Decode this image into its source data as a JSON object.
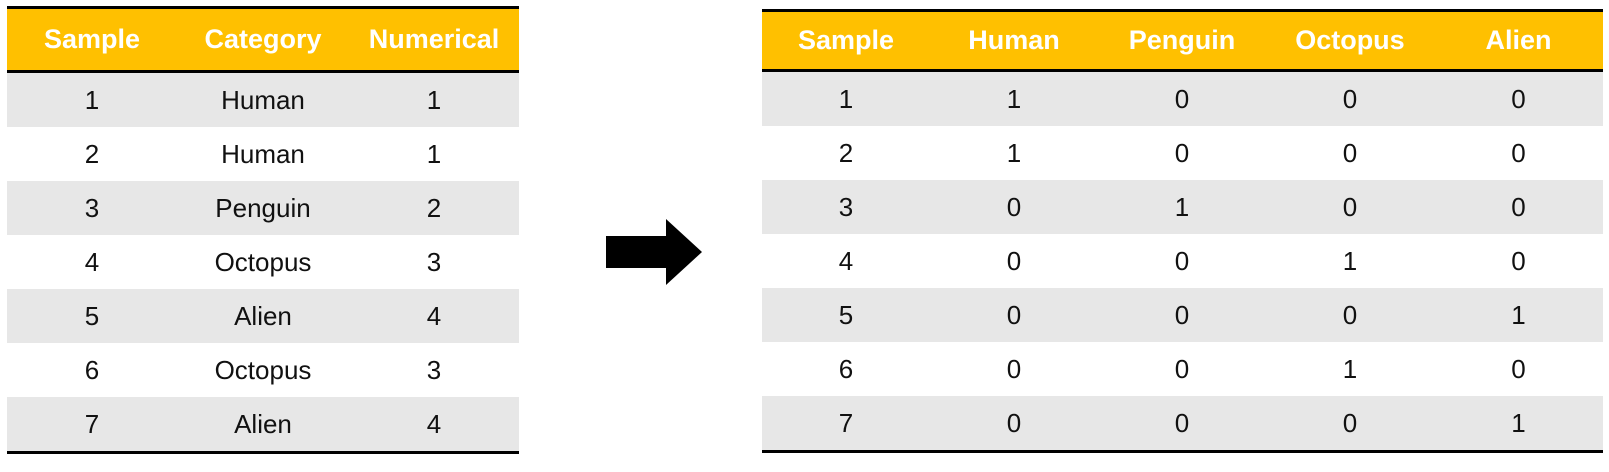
{
  "left_table": {
    "headers": [
      "Sample",
      "Category",
      "Numerical"
    ],
    "rows": [
      [
        "1",
        "Human",
        "1"
      ],
      [
        "2",
        "Human",
        "1"
      ],
      [
        "3",
        "Penguin",
        "2"
      ],
      [
        "4",
        "Octopus",
        "3"
      ],
      [
        "5",
        "Alien",
        "4"
      ],
      [
        "6",
        "Octopus",
        "3"
      ],
      [
        "7",
        "Alien",
        "4"
      ]
    ]
  },
  "right_table": {
    "headers": [
      "Sample",
      "Human",
      "Penguin",
      "Octopus",
      "Alien"
    ],
    "rows": [
      [
        "1",
        "1",
        "0",
        "0",
        "0"
      ],
      [
        "2",
        "1",
        "0",
        "0",
        "0"
      ],
      [
        "3",
        "0",
        "1",
        "0",
        "0"
      ],
      [
        "4",
        "0",
        "0",
        "1",
        "0"
      ],
      [
        "5",
        "0",
        "0",
        "0",
        "1"
      ],
      [
        "6",
        "0",
        "0",
        "1",
        "0"
      ],
      [
        "7",
        "0",
        "0",
        "0",
        "1"
      ]
    ]
  },
  "colors": {
    "header_bg": "#FFC000",
    "header_text": "#FFFFFF",
    "stripe_bg": "#E7E7E7",
    "rule": "#000000"
  },
  "icons": {
    "arrow": "right-arrow-icon"
  }
}
